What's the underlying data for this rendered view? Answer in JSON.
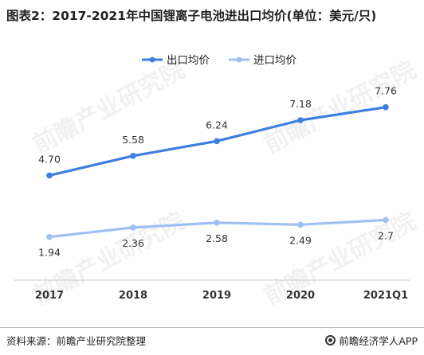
{
  "title": "图表2：2017-2021年中国锂离子电池进出口均价(单位：美元/只)",
  "source": "资料来源：前瞻产业研究院整理",
  "brand": "前瞻经济学人APP",
  "watermark": "前瞻产业研究院",
  "chart_data": {
    "type": "line",
    "categories": [
      "2017",
      "2018",
      "2019",
      "2020",
      "2021Q1"
    ],
    "series": [
      {
        "name": "出口均价",
        "values": [
          4.7,
          5.58,
          6.24,
          7.18,
          7.76
        ],
        "labels": [
          "4.70",
          "5.58",
          "6.24",
          "7.18",
          "7.76"
        ],
        "color": "#3d7fe0"
      },
      {
        "name": "进口均价",
        "values": [
          1.94,
          2.36,
          2.58,
          2.49,
          2.7
        ],
        "labels": [
          "1.94",
          "2.36",
          "2.58",
          "2.49",
          "2.7"
        ],
        "color": "#9fc0f3"
      }
    ],
    "ylim": [
      0,
      9
    ],
    "grid": false,
    "legend": "top-center"
  }
}
